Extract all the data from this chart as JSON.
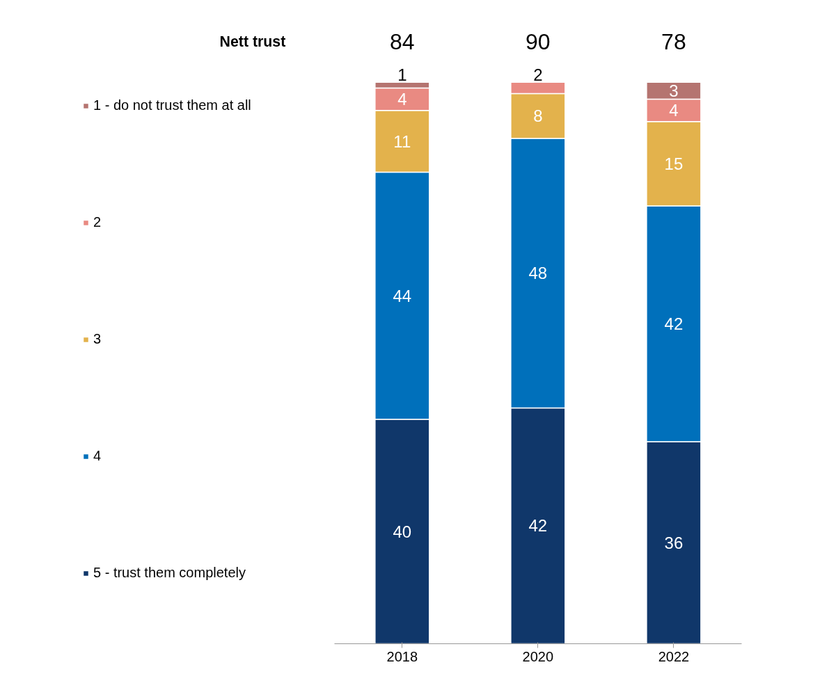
{
  "chart_data": {
    "type": "bar",
    "stacked": true,
    "categories": [
      "2018",
      "2020",
      "2022"
    ],
    "series": [
      {
        "name": "5 - trust them completely",
        "color": "#10376a",
        "values": [
          40,
          42,
          36
        ]
      },
      {
        "name": "4",
        "color": "#0070bb",
        "values": [
          44,
          48,
          42
        ]
      },
      {
        "name": "3",
        "color": "#e3b24c",
        "values": [
          11,
          8,
          15
        ]
      },
      {
        "name": "2",
        "color": "#e98a82",
        "values": [
          4,
          2,
          4
        ]
      },
      {
        "name": "1 - do not trust them at all",
        "color": "#b57470",
        "values": [
          1,
          null,
          3
        ]
      }
    ],
    "tick_labels": "x",
    "data_labels": true,
    "legend": "left",
    "grid": false,
    "annotations": [
      "Nett trust",
      "84",
      "90",
      "78"
    ]
  }
}
